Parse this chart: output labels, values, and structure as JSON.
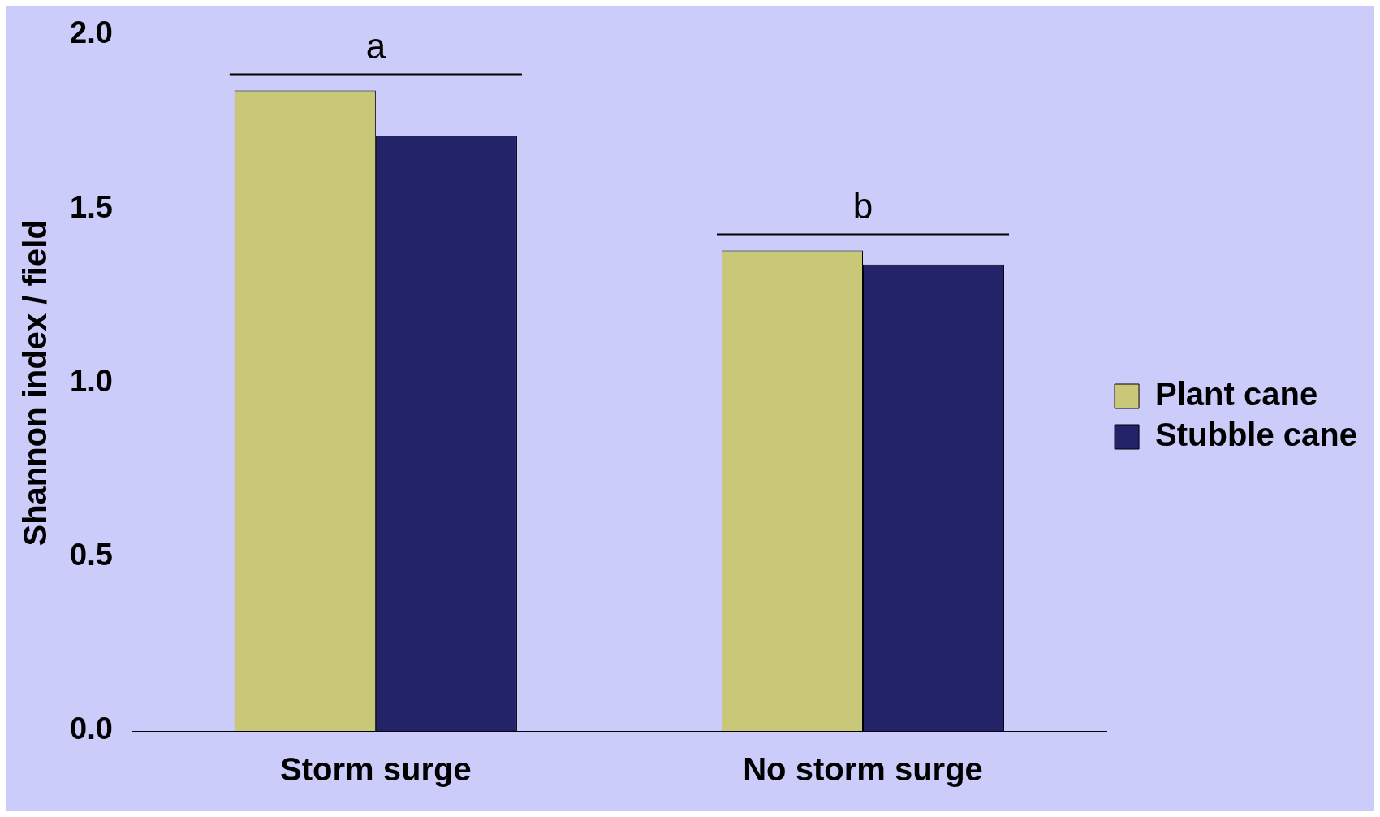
{
  "chart_data": {
    "type": "bar",
    "ylabel": "Shannon index / field",
    "categories": [
      "Storm surge",
      "No storm surge"
    ],
    "series": [
      {
        "name": "Plant cane",
        "color": "#c8c878",
        "values": [
          1.84,
          1.38
        ]
      },
      {
        "name": "Stubble cane",
        "color": "#23236a",
        "values": [
          1.71,
          1.34
        ]
      }
    ],
    "ylim": [
      0,
      2
    ],
    "yticks": [
      {
        "value": 0,
        "label": "0.0"
      },
      {
        "value": 0.5,
        "label": "0.5"
      },
      {
        "value": 1,
        "label": "1.0"
      },
      {
        "value": 1.5,
        "label": "1.5"
      },
      {
        "value": 2,
        "label": "2.0"
      }
    ],
    "annotations": [
      "a",
      "b"
    ],
    "grid": false,
    "legend": "right"
  }
}
